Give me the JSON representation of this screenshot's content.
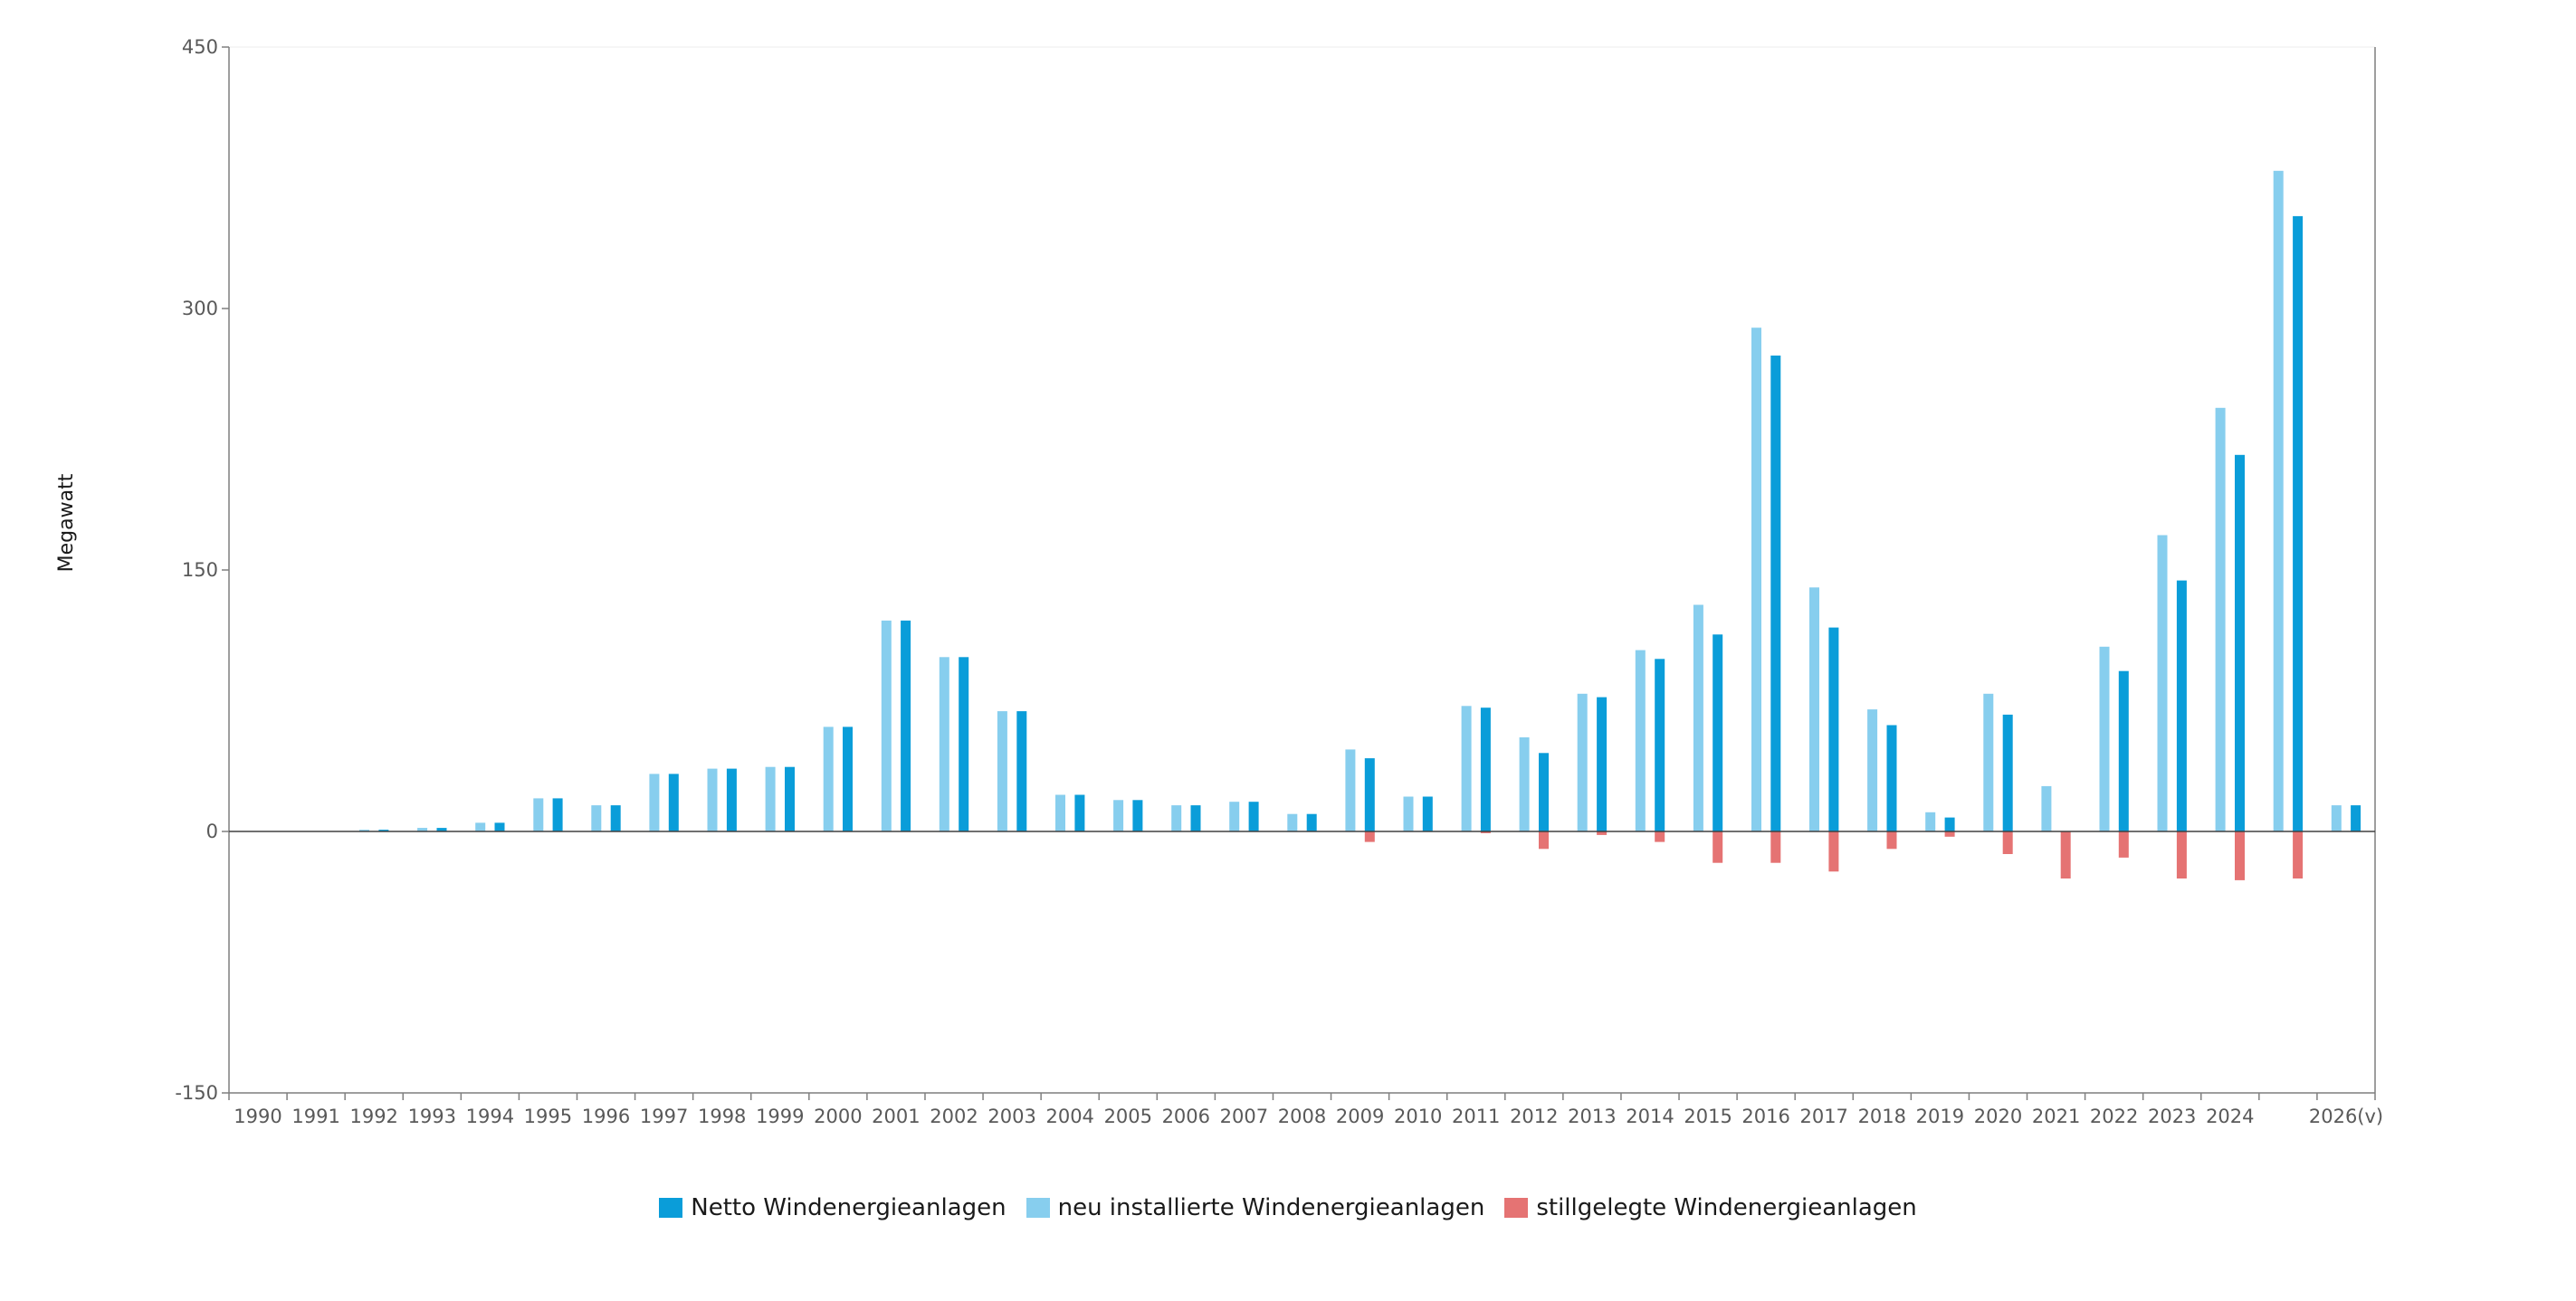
{
  "chart_data": {
    "type": "bar",
    "ylabel": "Megawatt",
    "ylim": [
      -150,
      450
    ],
    "yticks": [
      "450",
      "300",
      "150",
      "0",
      "-150"
    ],
    "ytick_values": [
      450,
      300,
      150,
      0,
      -150
    ],
    "categories": [
      "1990",
      "1991",
      "1992",
      "1993",
      "1994",
      "1995",
      "1996",
      "1997",
      "1998",
      "1999",
      "2000",
      "2001",
      "2002",
      "2003",
      "2004",
      "2005",
      "2006",
      "2007",
      "2008",
      "2009",
      "2010",
      "2011",
      "2012",
      "2013",
      "2014",
      "2015",
      "2016",
      "2017",
      "2018",
      "2019",
      "2020",
      "2021",
      "2022",
      "2023",
      "2024",
      "",
      "2026(v)"
    ],
    "colors": {
      "netto": "#0a9dd9",
      "neu": "#87ceee",
      "stillgelegt": "#e57373"
    },
    "series": [
      {
        "name": "Netto Windenergieanlagen",
        "key": "netto",
        "values": [
          0,
          0,
          1,
          2,
          5,
          19,
          15,
          33,
          36,
          37,
          60,
          121,
          100,
          69,
          21,
          18,
          15,
          17,
          10,
          42,
          20,
          71,
          45,
          77,
          99,
          113,
          273,
          117,
          61,
          8,
          67,
          0,
          92,
          144,
          216,
          353,
          15
        ]
      },
      {
        "name": "neu installierte Windenergieanlagen",
        "key": "neu",
        "values": [
          0,
          0,
          1,
          2,
          5,
          19,
          15,
          33,
          36,
          37,
          60,
          121,
          100,
          69,
          21,
          18,
          15,
          17,
          10,
          47,
          20,
          72,
          54,
          79,
          104,
          130,
          289,
          140,
          70,
          11,
          79,
          26,
          106,
          170,
          243,
          379,
          15
        ]
      },
      {
        "name": "stillgelegte Windenergieanlagen",
        "key": "stillgelegt",
        "values": [
          0,
          0,
          0,
          0,
          0,
          0,
          0,
          0,
          0,
          0,
          0,
          0,
          0,
          0,
          0,
          0,
          0,
          0,
          0,
          -6,
          0,
          -1,
          -10,
          -2,
          -6,
          -18,
          -18,
          -23,
          -10,
          -3,
          -13,
          -27,
          -15,
          -27,
          -28,
          -27,
          0
        ]
      }
    ]
  }
}
